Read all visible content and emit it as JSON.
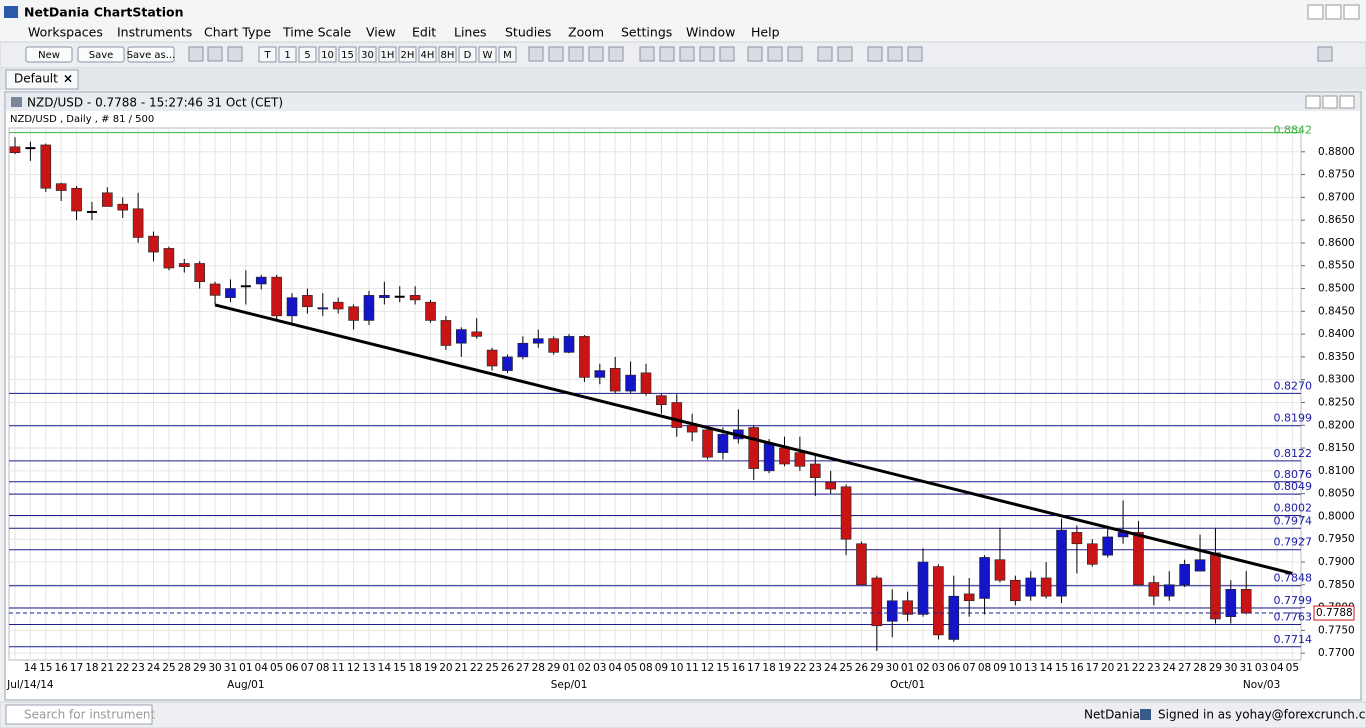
{
  "app": {
    "title": "NetDania ChartStation",
    "menu": [
      "Workspaces",
      "Instruments",
      "Chart Type",
      "Time Scale",
      "View",
      "Edit",
      "Lines",
      "Studies",
      "Zoom",
      "Settings",
      "Window",
      "Help"
    ],
    "buttons": [
      "New",
      "Save",
      "Save as..."
    ],
    "timescale": [
      "T",
      "1",
      "5",
      "10",
      "15",
      "30",
      "1H",
      "2H",
      "4H",
      "8H",
      "D",
      "W",
      "M"
    ],
    "tab": "Default",
    "status": {
      "search": "Search for instrument",
      "brand": "NetDania",
      "signed_in": "Signed in as yohay@forexcrunch.com"
    }
  },
  "chart_data": {
    "type": "candlestick",
    "title": "NZD/USD - 0.7788 - 15:27:46  31 Oct (CET)",
    "subtitle": "NZD/USD , Daily , # 81 / 500",
    "categories": [
      null,
      "14",
      "15",
      "16",
      "17",
      "18",
      "21",
      "22",
      "23",
      "24",
      "25",
      "28",
      "29",
      "30",
      "31",
      "01",
      "04",
      "05",
      "06",
      "07",
      "08",
      "11",
      "12",
      "13",
      "14",
      "15",
      "18",
      "19",
      "20",
      "21",
      "22",
      "25",
      "26",
      "27",
      "28",
      "29",
      "01",
      "02",
      "03",
      "04",
      "05",
      "08",
      "09",
      "10",
      "11",
      "12",
      "15",
      "16",
      "17",
      "18",
      "19",
      "22",
      "23",
      "24",
      "25",
      "26",
      "29",
      "30",
      "01",
      "02",
      "03",
      "06",
      "07",
      "08",
      "09",
      "10",
      "13",
      "14",
      "15",
      "16",
      "17",
      "20",
      "21",
      "22",
      "23",
      "24",
      "27",
      "28",
      "29",
      "30",
      "31",
      "03",
      "04",
      "05"
    ],
    "month_labels": [
      {
        "x": 1,
        "label": "Jul/14/14"
      },
      {
        "x": 15,
        "label": "Aug/01"
      },
      {
        "x": 36,
        "label": "Sep/01"
      },
      {
        "x": 58,
        "label": "Oct/01"
      },
      {
        "x": 81,
        "label": "Nov/03"
      }
    ],
    "open": [
      0.8811,
      0.8808,
      0.8815,
      0.873,
      0.872,
      0.8668,
      0.871,
      0.8685,
      0.8675,
      0.8615,
      0.8588,
      0.8555,
      0.8555,
      0.851,
      0.848,
      0.8505,
      0.851,
      0.8525,
      0.844,
      0.8485,
      0.8455,
      0.847,
      0.846,
      0.843,
      0.848,
      0.8482,
      0.8485,
      0.847,
      0.843,
      0.838,
      0.8405,
      0.8365,
      0.832,
      0.835,
      0.838,
      0.839,
      0.836,
      0.8395,
      0.8305,
      0.8325,
      0.8275,
      0.8315,
      0.8265,
      0.825,
      0.82,
      0.819,
      0.814,
      0.817,
      0.8195,
      0.81,
      0.815,
      0.814,
      0.8115,
      0.8075,
      0.8065,
      0.794,
      0.7865,
      0.777,
      0.7815,
      0.7785,
      0.789,
      0.773,
      0.783,
      0.782,
      0.7905,
      0.786,
      0.7825,
      0.7865,
      0.7825,
      0.7965,
      0.794,
      0.7915,
      0.7955,
      0.7965,
      0.7855,
      0.7825,
      0.785,
      0.788,
      0.792,
      0.778,
      0.784,
      null,
      null,
      null
    ],
    "high": [
      0.8832,
      0.8822,
      0.8818,
      0.8732,
      0.8725,
      0.869,
      0.8722,
      0.87,
      0.871,
      0.8625,
      0.8592,
      0.8565,
      0.856,
      0.8515,
      0.852,
      0.854,
      0.853,
      0.853,
      0.849,
      0.85,
      0.849,
      0.848,
      0.8465,
      0.8495,
      0.8515,
      0.8505,
      0.8505,
      0.8475,
      0.844,
      0.8415,
      0.8435,
      0.837,
      0.8355,
      0.8395,
      0.841,
      0.8395,
      0.84,
      0.8398,
      0.8335,
      0.835,
      0.834,
      0.8335,
      0.827,
      0.8268,
      0.8225,
      0.8195,
      0.8195,
      0.8235,
      0.82,
      0.817,
      0.8175,
      0.8175,
      0.8135,
      0.81,
      0.807,
      0.7945,
      0.787,
      0.784,
      0.7835,
      0.793,
      0.7895,
      0.787,
      0.7865,
      0.7915,
      0.7975,
      0.787,
      0.788,
      0.79,
      0.7995,
      0.798,
      0.795,
      0.798,
      0.8035,
      0.799,
      0.787,
      0.788,
      0.7905,
      0.796,
      0.7975,
      0.786,
      0.788,
      null,
      null,
      null
    ],
    "low": [
      0.8795,
      0.878,
      0.8712,
      0.8692,
      0.865,
      0.865,
      0.868,
      0.8655,
      0.86,
      0.856,
      0.854,
      0.8535,
      0.85,
      0.8465,
      0.847,
      0.8465,
      0.8498,
      0.843,
      0.8425,
      0.8445,
      0.844,
      0.8445,
      0.841,
      0.842,
      0.8465,
      0.847,
      0.8465,
      0.8425,
      0.8365,
      0.835,
      0.839,
      0.832,
      0.8315,
      0.8345,
      0.837,
      0.8355,
      0.8358,
      0.8295,
      0.829,
      0.827,
      0.827,
      0.8265,
      0.8225,
      0.8175,
      0.8165,
      0.8125,
      0.8125,
      0.816,
      0.808,
      0.8095,
      0.811,
      0.81,
      0.8045,
      0.805,
      0.7915,
      0.785,
      0.7705,
      0.7735,
      0.777,
      0.778,
      0.773,
      0.7725,
      0.778,
      0.7785,
      0.7855,
      0.7805,
      0.7815,
      0.782,
      0.781,
      0.7875,
      0.789,
      0.791,
      0.794,
      0.785,
      0.7805,
      0.7815,
      0.7845,
      0.788,
      0.7765,
      0.7765,
      0.7785,
      null,
      null,
      null
    ],
    "close": [
      0.8798,
      0.8808,
      0.872,
      0.8715,
      0.867,
      0.8668,
      0.868,
      0.8672,
      0.8612,
      0.858,
      0.8545,
      0.8548,
      0.8515,
      0.8485,
      0.85,
      0.8505,
      0.8525,
      0.844,
      0.848,
      0.846,
      0.8458,
      0.8455,
      0.843,
      0.8485,
      0.8485,
      0.8482,
      0.8475,
      0.843,
      0.8375,
      0.841,
      0.8395,
      0.833,
      0.835,
      0.838,
      0.839,
      0.836,
      0.8395,
      0.8305,
      0.832,
      0.8275,
      0.831,
      0.827,
      0.8245,
      0.8195,
      0.8185,
      0.813,
      0.818,
      0.819,
      0.8105,
      0.816,
      0.8115,
      0.811,
      0.8085,
      0.806,
      0.795,
      0.785,
      0.776,
      0.7815,
      0.7785,
      0.79,
      0.774,
      0.7825,
      0.7815,
      0.791,
      0.786,
      0.7815,
      0.7865,
      0.7825,
      0.797,
      0.794,
      0.7895,
      0.7955,
      0.7965,
      0.785,
      0.7825,
      0.785,
      0.7895,
      0.7905,
      0.7775,
      0.784,
      0.7788,
      null,
      null,
      null
    ],
    "up_color": "#1414c8",
    "down_color": "#c81414",
    "doji_color": "#000000",
    "levels": [
      {
        "value": 0.827,
        "label": "0.8270"
      },
      {
        "value": 0.8199,
        "label": "0.8199"
      },
      {
        "value": 0.8122,
        "label": "0.8122"
      },
      {
        "value": 0.8076,
        "label": "0.8076"
      },
      {
        "value": 0.8049,
        "label": "0.8049"
      },
      {
        "value": 0.8002,
        "label": "0.8002"
      },
      {
        "value": 0.7974,
        "label": "0.7974"
      },
      {
        "value": 0.7927,
        "label": "0.7927"
      },
      {
        "value": 0.7848,
        "label": "0.7848"
      },
      {
        "value": 0.7799,
        "label": "0.7799"
      },
      {
        "value": 0.7763,
        "label": "0.7763"
      },
      {
        "value": 0.7714,
        "label": "0.7714"
      }
    ],
    "level_color": "#1c1c8c",
    "top_level": {
      "value": 0.8842,
      "label": "0.8842"
    },
    "top_level_color": "#3cb43c",
    "last": {
      "value": 0.7788,
      "label": "0.7788"
    },
    "last_color": "#d01010",
    "trendline": {
      "x": [
        13,
        83
      ],
      "y": [
        0.8464,
        0.7875
      ]
    },
    "trendline_color": "#000000",
    "ylim": [
      0.7685,
      0.885
    ],
    "yticks": [
      {
        "value": 0.88,
        "label": "0.8800"
      },
      {
        "value": 0.875,
        "label": "0.8750"
      },
      {
        "value": 0.87,
        "label": "0.8700"
      },
      {
        "value": 0.865,
        "label": "0.8650"
      },
      {
        "value": 0.86,
        "label": "0.8600"
      },
      {
        "value": 0.855,
        "label": "0.8550"
      },
      {
        "value": 0.85,
        "label": "0.8500"
      },
      {
        "value": 0.845,
        "label": "0.8450"
      },
      {
        "value": 0.84,
        "label": "0.8400"
      },
      {
        "value": 0.835,
        "label": "0.8350"
      },
      {
        "value": 0.83,
        "label": "0.8300"
      },
      {
        "value": 0.825,
        "label": "0.8250"
      },
      {
        "value": 0.82,
        "label": "0.8200"
      },
      {
        "value": 0.815,
        "label": "0.8150"
      },
      {
        "value": 0.81,
        "label": "0.8100"
      },
      {
        "value": 0.805,
        "label": "0.8050"
      },
      {
        "value": 0.8,
        "label": "0.8000"
      },
      {
        "value": 0.795,
        "label": "0.7950"
      },
      {
        "value": 0.79,
        "label": "0.7900"
      },
      {
        "value": 0.785,
        "label": "0.7850"
      },
      {
        "value": 0.78,
        "label": "0.7800"
      },
      {
        "value": 0.775,
        "label": "0.7750"
      },
      {
        "value": 0.77,
        "label": "0.7700"
      }
    ],
    "grid": true
  }
}
